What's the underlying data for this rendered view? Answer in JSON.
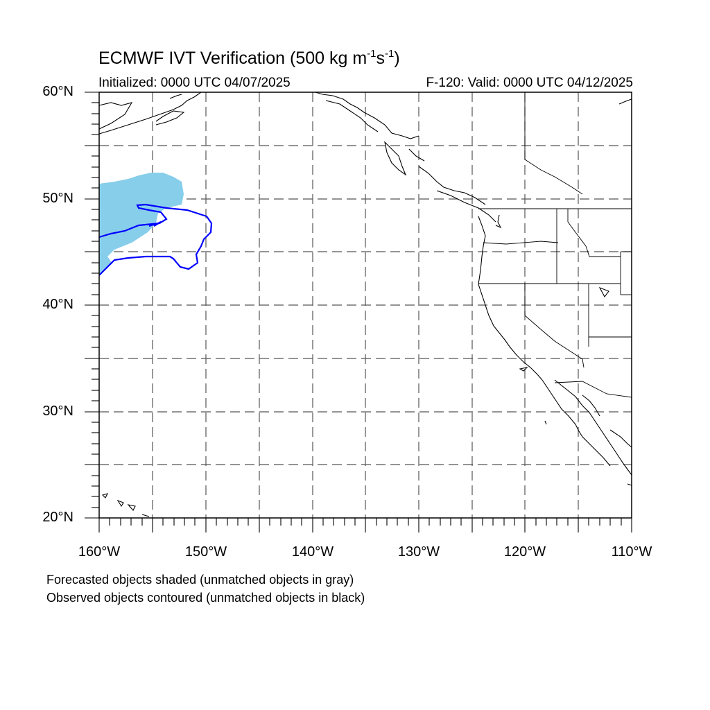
{
  "header": {
    "title_main": "ECMWF IVT Verification (500 kg m",
    "title_sup1": "-1",
    "title_mid": "s",
    "title_sup2": "-1",
    "title_end": ")",
    "initialized": "Initialized: 0000 UTC 04/07/2025",
    "valid": "F-120: Valid: 0000 UTC 04/12/2025"
  },
  "axes": {
    "lat_labels": [
      "60°N",
      "50°N",
      "40°N",
      "30°N",
      "20°N"
    ],
    "lon_labels": [
      "160°W",
      "150°W",
      "140°W",
      "130°W",
      "120°W",
      "110°W"
    ],
    "lat_range": [
      20,
      60
    ],
    "lon_range": [
      -160,
      -110
    ],
    "grid": "dashed every 5°"
  },
  "legend": {
    "line1": "Forecasted objects shaded (unmatched objects in gray)",
    "line2": "Observed objects contoured (unmatched objects in black)"
  },
  "colors": {
    "forecast_fill": "#87ceeb",
    "observed_contour": "#0000ff",
    "coast": "#000000",
    "grid": "#555555"
  }
}
